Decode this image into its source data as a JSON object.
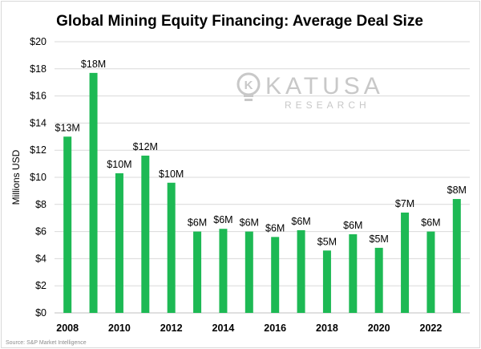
{
  "chart_data": {
    "type": "bar",
    "title": "Global Mining Equity Financing: Average Deal Size",
    "ylabel": "Millions USD",
    "xlabel": "",
    "ylim": [
      0,
      20
    ],
    "y_ticks": [
      "$0",
      "$2",
      "$4",
      "$6",
      "$8",
      "$10",
      "$12",
      "$14",
      "$16",
      "$18",
      "$20"
    ],
    "categories": [
      "2008",
      "2009",
      "2010",
      "2011",
      "2012",
      "2013",
      "2014",
      "2015",
      "2016",
      "2017",
      "2018",
      "2019",
      "2020",
      "2021",
      "2022",
      "2023"
    ],
    "x_tick_labels": [
      "2008",
      "",
      "2010",
      "",
      "2012",
      "",
      "2014",
      "",
      "2016",
      "",
      "2018",
      "",
      "2020",
      "",
      "2022",
      ""
    ],
    "values": [
      13.0,
      17.7,
      10.3,
      11.6,
      9.6,
      6.0,
      6.2,
      6.0,
      5.6,
      6.1,
      4.6,
      5.8,
      4.8,
      7.4,
      6.0,
      8.4
    ],
    "data_labels": [
      "$13M",
      "$18M",
      "$10M",
      "$12M",
      "$10M",
      "$6M",
      "$6M",
      "$6M",
      "$6M",
      "$6M",
      "$5M",
      "$6M",
      "$5M",
      "$7M",
      "$6M",
      "$8M"
    ],
    "bar_color": "#1db954",
    "grid": true,
    "legend": "none"
  },
  "watermark": {
    "brand": "KATUSA",
    "sub": "RESEARCH",
    "icon": "lightbulb-k-icon",
    "color": "#c8c8c8"
  },
  "source": "Source: S&P Market Intelligence"
}
